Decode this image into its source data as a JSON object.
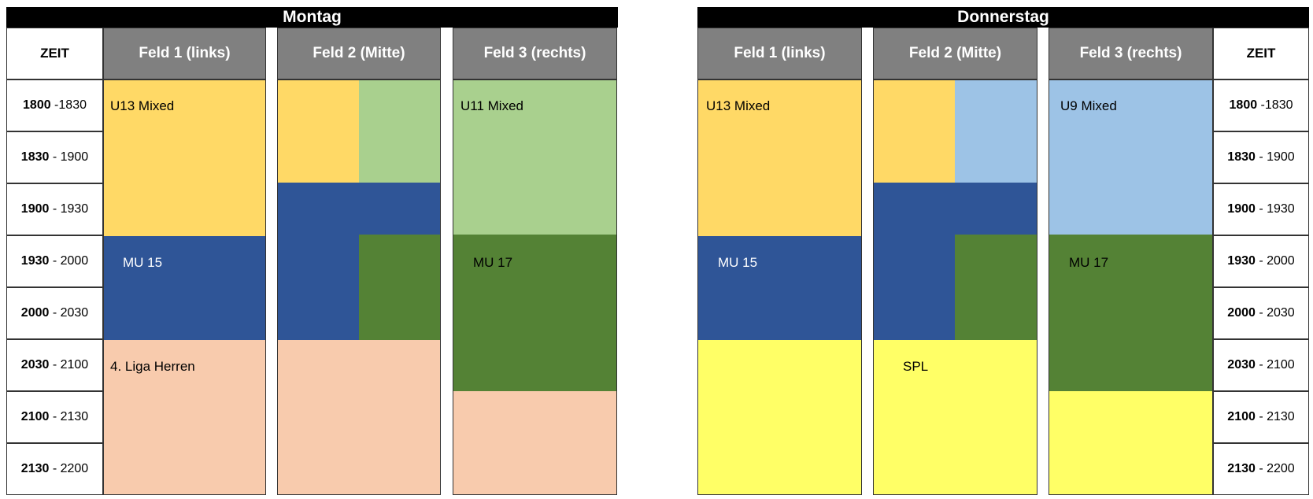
{
  "colors": {
    "header_bg": "#000000",
    "field_header_bg": "#808080",
    "u13_mixed": "#ffd966",
    "u11_mixed": "#a9d08e",
    "u9_mixed": "#9dc3e6",
    "mu15": "#2f5597",
    "mu17": "#548235",
    "liga_herren": "#f8cbad",
    "spl": "#ffff66"
  },
  "montag": {
    "day": "Montag",
    "zeit_header": "ZEIT",
    "fields": [
      "Feld 1 (links)",
      "Feld 2 (Mitte)",
      "Feld 3 (rechts)"
    ],
    "times": [
      {
        "start": "1800",
        "sep": " -",
        "end": "1830"
      },
      {
        "start": "1830",
        "sep": " - ",
        "end": "1900"
      },
      {
        "start": "1900",
        "sep": " - ",
        "end": "1930"
      },
      {
        "start": "1930",
        "sep": " - ",
        "end": "2000"
      },
      {
        "start": "2000",
        "sep": " - ",
        "end": "2030"
      },
      {
        "start": "2030",
        "sep": " - ",
        "end": "2100"
      },
      {
        "start": "2100",
        "sep": " - ",
        "end": "2130"
      },
      {
        "start": "2130",
        "sep": " - ",
        "end": "2200"
      }
    ],
    "labels": {
      "u13": "U13 Mixed",
      "mu15": "MU 15",
      "herren": "4. Liga Herren",
      "u11": "U11 Mixed",
      "mu17": "MU 17"
    }
  },
  "donnerstag": {
    "day": "Donnerstag",
    "zeit_header": "ZEIT",
    "fields": [
      "Feld 1 (links)",
      "Feld 2 (Mitte)",
      "Feld 3 (rechts)"
    ],
    "times": [
      {
        "start": "1800",
        "sep": " -",
        "end": "1830"
      },
      {
        "start": "1830",
        "sep": " - ",
        "end": "1900"
      },
      {
        "start": "1900",
        "sep": " - ",
        "end": "1930"
      },
      {
        "start": "1930",
        "sep": " - ",
        "end": "2000"
      },
      {
        "start": "2000",
        "sep": " - ",
        "end": "2030"
      },
      {
        "start": "2030",
        "sep": " - ",
        "end": "2100"
      },
      {
        "start": "2100",
        "sep": " - ",
        "end": "2130"
      },
      {
        "start": "2130",
        "sep": " - ",
        "end": "2200"
      }
    ],
    "labels": {
      "u13": "U13 Mixed",
      "mu15": "MU 15",
      "spl": "SPL",
      "u9": "U9 Mixed",
      "mu17": "MU 17"
    }
  }
}
